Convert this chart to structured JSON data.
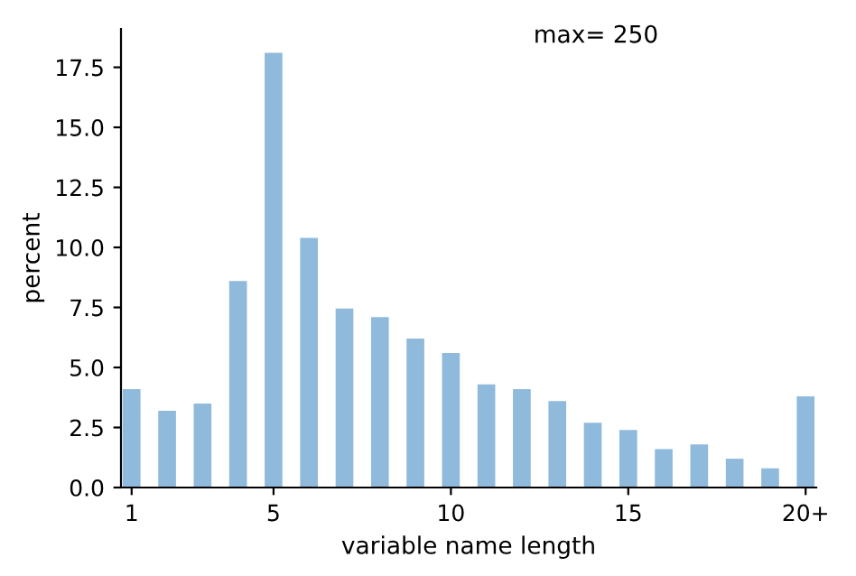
{
  "chart_data": {
    "type": "bar",
    "x": [
      1,
      2,
      3,
      4,
      5,
      6,
      7,
      8,
      9,
      10,
      11,
      12,
      13,
      14,
      15,
      16,
      17,
      18,
      19,
      20
    ],
    "values": [
      4.1,
      3.2,
      3.5,
      8.6,
      18.1,
      10.4,
      7.45,
      7.1,
      6.2,
      5.6,
      4.3,
      4.1,
      3.6,
      2.7,
      2.4,
      1.6,
      1.8,
      1.2,
      0.8,
      3.8
    ],
    "color": "#8fbadb",
    "xlabel": "variable name length",
    "ylabel": "percent",
    "annotations": [
      "max= 250"
    ],
    "xlim": [
      0.7,
      20.3
    ],
    "xticks": [
      1,
      5,
      10,
      15,
      {
        "value": 20,
        "label": "20+"
      }
    ],
    "ylim": [
      0,
      19.1
    ],
    "yticks": [
      {
        "value": 0,
        "label": "0.0"
      },
      2.5,
      {
        "value": 5,
        "label": "5.0"
      },
      7.5,
      {
        "value": 10,
        "label": "10.0"
      },
      12.5,
      {
        "value": 15,
        "label": "15.0"
      },
      17.5
    ],
    "grid": false,
    "legend": false
  }
}
